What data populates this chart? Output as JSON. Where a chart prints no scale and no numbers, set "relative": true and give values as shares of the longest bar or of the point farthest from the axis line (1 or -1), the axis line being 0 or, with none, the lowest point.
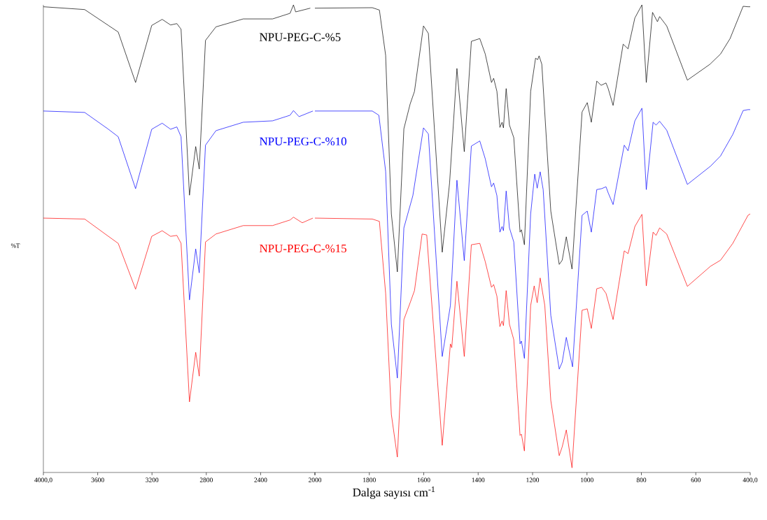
{
  "chart_data": [
    {
      "type": "line",
      "relative": true,
      "ylabel": "%T",
      "xlim": [
        4000,
        2000
      ],
      "xticks": [
        {
          "value": 4000,
          "label": "4000,0"
        },
        3600,
        3200,
        2800,
        2400,
        2000
      ],
      "series": [
        {
          "name": "NPU-PEG-C-%5",
          "color": "#000000",
          "x": [
            4000,
            3696,
            3521,
            3449,
            3321,
            3202,
            3125,
            3063,
            3017,
            2986,
            2924,
            2878,
            2852,
            2806,
            2729,
            2528,
            2312,
            2183,
            2158,
            2142,
            2034
          ],
          "values": [
            0.996,
            0.99,
            0.956,
            0.942,
            0.834,
            0.956,
            0.969,
            0.957,
            0.96,
            0.948,
            0.593,
            0.697,
            0.649,
            0.924,
            0.953,
            0.97,
            0.97,
            0.982,
            1.0,
            0.985,
            0.993
          ]
        },
        {
          "name": "NPU-PEG-C-%10",
          "color": "#0000ff",
          "x": [
            4000,
            3696,
            3521,
            3449,
            3321,
            3202,
            3125,
            3063,
            3017,
            2986,
            2924,
            2878,
            2852,
            2806,
            2729,
            2528,
            2312,
            2183,
            2158,
            2117,
            2015
          ],
          "values": [
            0.773,
            0.77,
            0.734,
            0.718,
            0.607,
            0.734,
            0.747,
            0.734,
            0.739,
            0.718,
            0.369,
            0.478,
            0.427,
            0.7,
            0.731,
            0.749,
            0.752,
            0.764,
            0.774,
            0.761,
            0.773
          ]
        },
        {
          "name": "NPU-PEG-C-%15",
          "color": "#ff0000",
          "x": [
            4000,
            3696,
            3521,
            3449,
            3321,
            3202,
            3125,
            3063,
            3017,
            2986,
            2924,
            2878,
            2852,
            2806,
            2729,
            2528,
            2312,
            2183,
            2158,
            2093,
            2015
          ],
          "values": [
            0.544,
            0.542,
            0.505,
            0.49,
            0.392,
            0.505,
            0.517,
            0.505,
            0.507,
            0.49,
            0.151,
            0.257,
            0.206,
            0.493,
            0.51,
            0.528,
            0.528,
            0.54,
            0.546,
            0.534,
            0.544
          ]
        }
      ]
    },
    {
      "type": "line",
      "relative": true,
      "xlabel": "Dalga sayısı cm$^{-1}$",
      "xlim": [
        2000,
        400
      ],
      "xticks": [
        {
          "value": 2000,
          "label": null
        },
        1800,
        1600,
        1400,
        1200,
        1000,
        800,
        600,
        {
          "value": 400,
          "label": "400,0"
        }
      ],
      "series": [
        {
          "color": "#000000",
          "x": [
            2000,
            1789,
            1763,
            1740,
            1719,
            1697,
            1673,
            1650,
            1634,
            1601,
            1583,
            1532,
            1505,
            1478,
            1451,
            1425,
            1394,
            1374,
            1351,
            1343,
            1331,
            1320,
            1312,
            1307,
            1297,
            1285,
            1269,
            1246,
            1241,
            1230,
            1207,
            1189,
            1181,
            1176,
            1166,
            1133,
            1102,
            1091,
            1076,
            1055,
            1018,
            999,
            984,
            964,
            948,
            930,
            922,
            904,
            867,
            849,
            824,
            798,
            782,
            759,
            741,
            733,
            707,
            631,
            548,
            509,
            474,
            426,
            408,
            400
          ],
          "values": [
            0.993,
            0.994,
            0.989,
            0.892,
            0.553,
            0.429,
            0.735,
            0.788,
            0.815,
            0.955,
            0.939,
            0.471,
            0.619,
            0.864,
            0.686,
            0.922,
            0.928,
            0.895,
            0.834,
            0.843,
            0.815,
            0.738,
            0.749,
            0.737,
            0.821,
            0.743,
            0.716,
            0.514,
            0.519,
            0.487,
            0.815,
            0.886,
            0.883,
            0.891,
            0.873,
            0.559,
            0.445,
            0.454,
            0.504,
            0.435,
            0.771,
            0.791,
            0.749,
            0.837,
            0.828,
            0.833,
            0.821,
            0.785,
            0.916,
            0.906,
            0.972,
            1.0,
            0.834,
            0.984,
            0.964,
            0.975,
            0.955,
            0.839,
            0.873,
            0.895,
            0.928,
            0.997,
            0.996,
            0.996
          ]
        },
        {
          "color": "#0000ff",
          "x": [
            2000,
            1789,
            1765,
            1740,
            1719,
            1697,
            1673,
            1640,
            1601,
            1583,
            1532,
            1502,
            1478,
            1451,
            1425,
            1394,
            1374,
            1351,
            1343,
            1331,
            1320,
            1312,
            1307,
            1297,
            1285,
            1269,
            1246,
            1241,
            1230,
            1207,
            1192,
            1183,
            1172,
            1161,
            1133,
            1102,
            1091,
            1076,
            1053,
            1018,
            999,
            984,
            964,
            946,
            930,
            922,
            904,
            863,
            849,
            824,
            798,
            782,
            757,
            746,
            733,
            707,
            631,
            546,
            509,
            464,
            426,
            408,
            400
          ],
          "values": [
            0.773,
            0.773,
            0.764,
            0.644,
            0.317,
            0.202,
            0.523,
            0.592,
            0.737,
            0.724,
            0.248,
            0.357,
            0.625,
            0.453,
            0.698,
            0.709,
            0.671,
            0.611,
            0.619,
            0.592,
            0.514,
            0.526,
            0.517,
            0.602,
            0.523,
            0.493,
            0.275,
            0.281,
            0.244,
            0.553,
            0.638,
            0.608,
            0.643,
            0.605,
            0.336,
            0.221,
            0.236,
            0.289,
            0.226,
            0.55,
            0.559,
            0.514,
            0.605,
            0.607,
            0.611,
            0.598,
            0.573,
            0.7,
            0.688,
            0.752,
            0.779,
            0.605,
            0.749,
            0.743,
            0.751,
            0.732,
            0.616,
            0.655,
            0.677,
            0.723,
            0.774,
            0.776,
            0.776
          ]
        },
        {
          "color": "#ff0000",
          "x": [
            2000,
            1789,
            1763,
            1740,
            1719,
            1697,
            1673,
            1650,
            1634,
            1606,
            1589,
            1532,
            1502,
            1497,
            1478,
            1451,
            1425,
            1394,
            1374,
            1351,
            1343,
            1331,
            1320,
            1312,
            1307,
            1297,
            1285,
            1269,
            1246,
            1241,
            1230,
            1207,
            1194,
            1183,
            1172,
            1155,
            1133,
            1102,
            1091,
            1076,
            1055,
            1018,
            999,
            984,
            964,
            946,
            930,
            922,
            904,
            863,
            849,
            824,
            798,
            782,
            757,
            746,
            733,
            707,
            631,
            546,
            509,
            464,
            408,
            400
          ],
          "values": [
            0.544,
            0.542,
            0.537,
            0.383,
            0.124,
            0.033,
            0.327,
            0.363,
            0.389,
            0.51,
            0.508,
            0.058,
            0.275,
            0.267,
            0.409,
            0.248,
            0.487,
            0.49,
            0.451,
            0.396,
            0.402,
            0.377,
            0.312,
            0.324,
            0.314,
            0.389,
            0.317,
            0.284,
            0.079,
            0.082,
            0.046,
            0.357,
            0.399,
            0.363,
            0.416,
            0.357,
            0.154,
            0.036,
            0.055,
            0.091,
            0.01,
            0.347,
            0.35,
            0.308,
            0.393,
            0.396,
            0.383,
            0.366,
            0.327,
            0.474,
            0.468,
            0.526,
            0.552,
            0.399,
            0.514,
            0.507,
            0.523,
            0.51,
            0.398,
            0.441,
            0.454,
            0.49,
            0.55,
            0.553
          ]
        }
      ]
    }
  ]
}
